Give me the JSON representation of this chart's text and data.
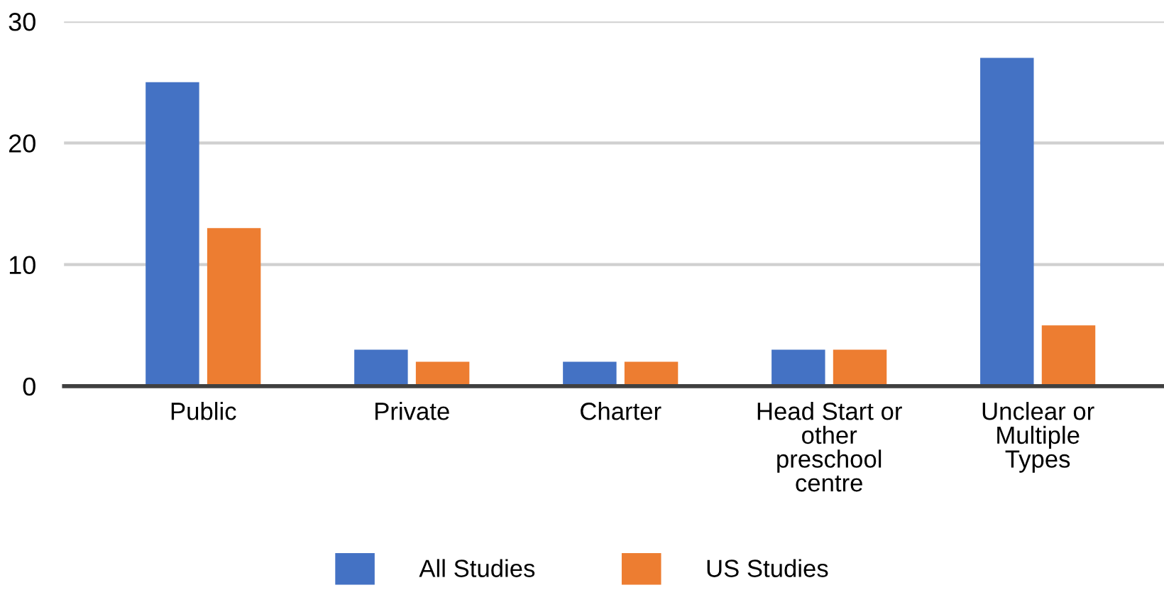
{
  "chart_data": {
    "type": "bar",
    "categories": [
      "Public",
      "Private",
      "Charter",
      "Head Start or\nother\npreschool\ncentre",
      "Unclear or\nMultiple\nTypes"
    ],
    "series": [
      {
        "name": "All Studies",
        "color": "#4472c4",
        "values": [
          25,
          3,
          2,
          3,
          27
        ]
      },
      {
        "name": "US Studies",
        "color": "#ed7d31",
        "values": [
          13,
          2,
          2,
          3,
          5
        ]
      }
    ],
    "ylim": [
      0,
      30
    ],
    "yticks": [
      0,
      10,
      20,
      30
    ],
    "grid": "y",
    "legend": "bottom"
  }
}
